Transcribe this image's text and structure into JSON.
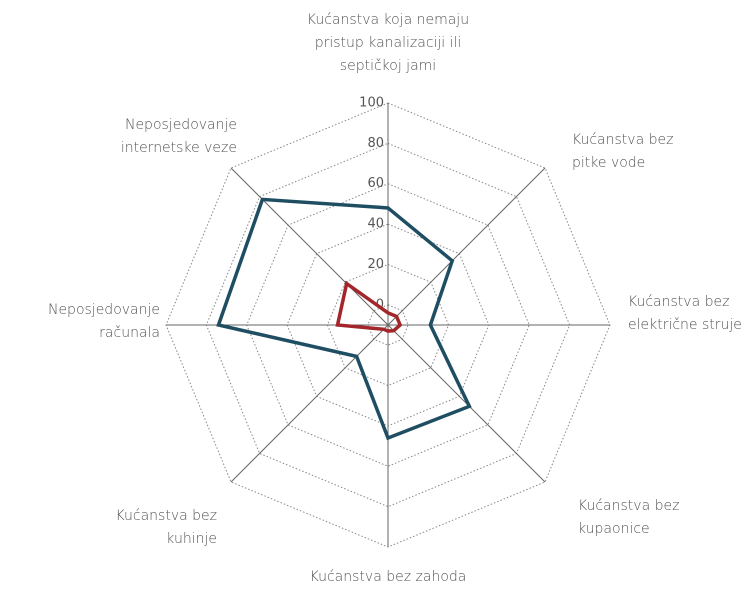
{
  "chart_data": {
    "type": "radar",
    "categories": [
      "Kućanstva koja nemaju pristup kanalizaciji ili septičkoj jami",
      "Kućanstva bez pitke vode",
      "Kućanstva bez električne struje",
      "Kućanstva bez kupaonice",
      "Kućanstva bez zahoda",
      "Kućanstva bez kuhinje",
      "Neposjedovanje računala",
      "Neposjedovanje internetske veze"
    ],
    "series": [
      {
        "color": "#1f4e63",
        "values": [
          48,
          35,
          11,
          47,
          46,
          12,
          74,
          78
        ]
      },
      {
        "color": "#a3262a",
        "values": [
          -4,
          -4,
          -4,
          -6,
          -7,
          -7,
          15,
          19
        ]
      }
    ],
    "ylim": [
      -10,
      100
    ],
    "yticks": [
      0,
      20,
      40,
      60,
      80,
      100
    ],
    "grid": true
  }
}
